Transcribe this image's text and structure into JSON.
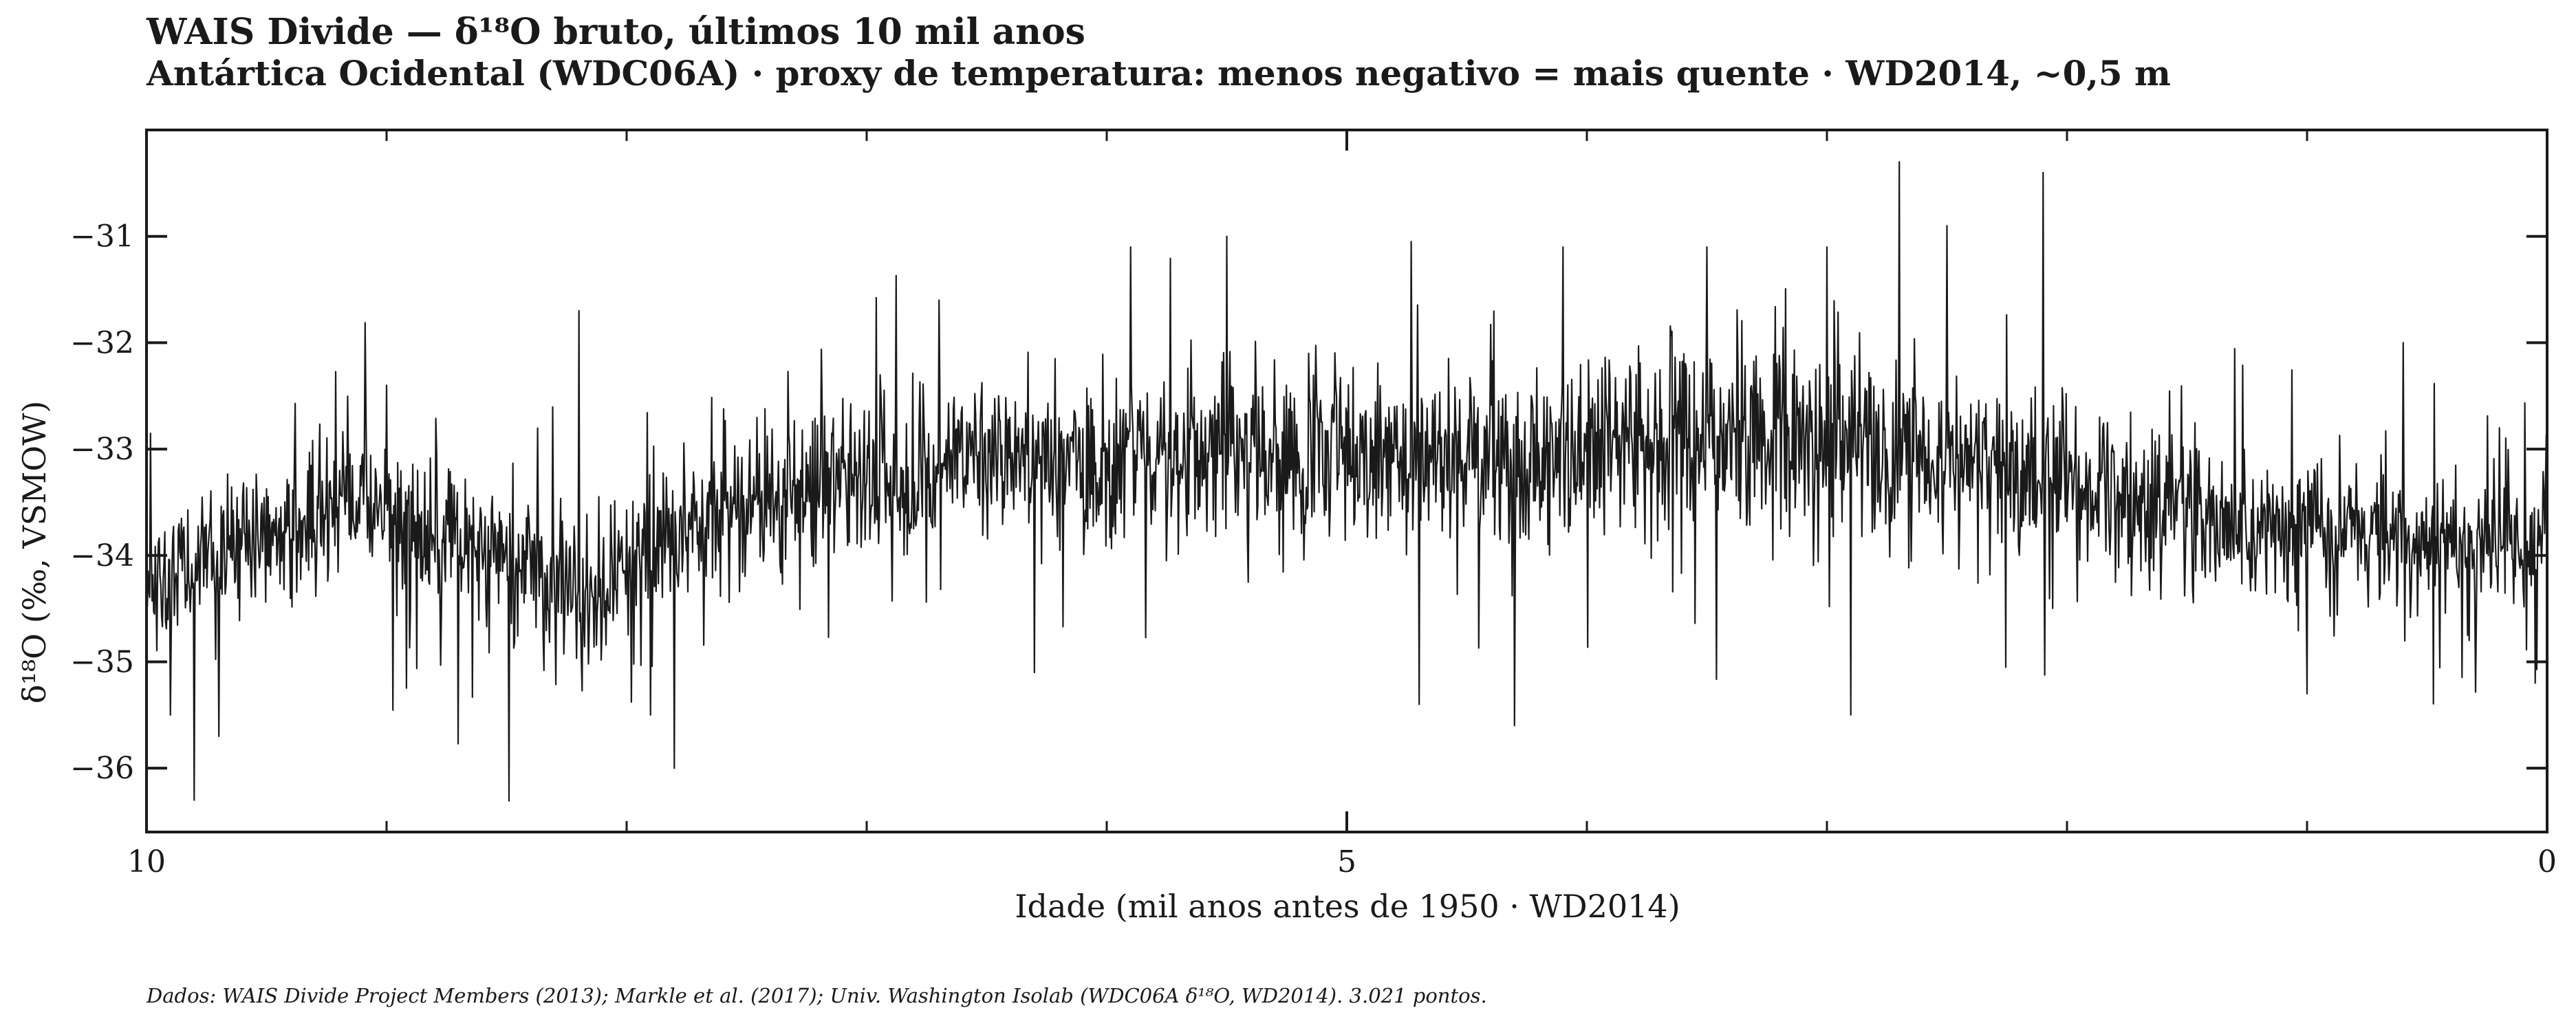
{
  "chart_data": {
    "type": "line",
    "title": "WAIS Divide — δ¹⁸O bruto, últimos 10 mil anos",
    "subtitle": "Antártica Ocidental (WDC06A) · proxy de temperatura: menos negativo = mais quente · WD2014, ~0,5 m",
    "xlabel": "Idade (mil anos antes de 1950 · WD2014)",
    "ylabel": "δ¹⁸O (‰, VSMOW)",
    "source": "Dados: WAIS Divide Project Members (2013); Markle et al. (2017); Univ. Washington Isolab (WDC06A δ¹⁸O, WD2014). 3.021 pontos.",
    "xlim": [
      10,
      0
    ],
    "ylim": [
      -36.6,
      -30.0
    ],
    "x_ticks": [
      10,
      5,
      0
    ],
    "x_tick_labels": [
      "10",
      "5",
      "0"
    ],
    "x_minor_ticks": [
      9,
      8,
      7,
      6,
      4,
      3,
      2,
      1
    ],
    "y_ticks": [
      -31,
      -32,
      -33,
      -34,
      -35,
      -36
    ],
    "y_tick_labels": [
      "−31",
      "−32",
      "−33",
      "−34",
      "−35",
      "−36"
    ],
    "grid": false,
    "point_count": 3021,
    "line_color": "#1a1a1a",
    "series": [
      {
        "x": [
          10.0,
          9.9,
          9.8,
          9.7,
          9.6,
          9.5,
          9.4,
          9.3,
          9.2,
          9.1,
          9.0,
          8.9,
          8.8,
          8.7,
          8.6,
          8.5,
          8.4,
          8.3,
          8.2,
          8.1,
          8.0,
          7.9,
          7.8,
          7.7,
          7.6,
          7.5,
          7.4,
          7.3,
          7.2,
          7.1,
          7.0,
          6.9,
          6.8,
          6.7,
          6.6,
          6.5,
          6.4,
          6.3,
          6.2,
          6.1,
          6.0,
          5.9,
          5.8,
          5.7,
          5.6,
          5.5,
          5.4,
          5.3,
          5.2,
          5.1,
          5.0,
          4.9,
          4.8,
          4.7,
          4.6,
          4.5,
          4.4,
          4.3,
          4.2,
          4.1,
          4.0,
          3.9,
          3.8,
          3.7,
          3.6,
          3.5,
          3.4,
          3.3,
          3.2,
          3.1,
          3.0,
          2.9,
          2.8,
          2.7,
          2.6,
          2.5,
          2.4,
          2.3,
          2.2,
          2.1,
          2.0,
          1.9,
          1.8,
          1.7,
          1.6,
          1.5,
          1.4,
          1.3,
          1.2,
          1.1,
          1.0,
          0.9,
          0.8,
          0.7,
          0.6,
          0.5,
          0.4,
          0.3,
          0.2,
          0.1,
          0.0
        ],
        "mean": [
          -34.2,
          -34.3,
          -34.1,
          -34.0,
          -33.9,
          -33.8,
          -33.7,
          -33.6,
          -33.6,
          -33.5,
          -33.6,
          -33.7,
          -33.8,
          -33.9,
          -34.0,
          -34.1,
          -34.2,
          -34.3,
          -34.4,
          -34.3,
          -34.1,
          -33.9,
          -33.8,
          -33.7,
          -33.6,
          -33.5,
          -33.5,
          -33.4,
          -33.3,
          -33.3,
          -33.2,
          -33.2,
          -33.3,
          -33.2,
          -33.1,
          -33.1,
          -33.0,
          -33.1,
          -33.2,
          -33.1,
          -33.1,
          -33.1,
          -33.0,
          -33.1,
          -33.0,
          -33.1,
          -33.2,
          -33.1,
          -33.1,
          -33.0,
          -33.0,
          -33.1,
          -33.1,
          -33.0,
          -33.0,
          -32.9,
          -33.0,
          -33.1,
          -33.0,
          -33.0,
          -33.0,
          -32.9,
          -33.0,
          -33.1,
          -32.9,
          -32.9,
          -32.8,
          -32.9,
          -32.8,
          -32.8,
          -32.8,
          -32.9,
          -33.0,
          -33.1,
          -33.1,
          -33.2,
          -33.2,
          -33.2,
          -33.3,
          -33.3,
          -33.3,
          -33.4,
          -33.4,
          -33.5,
          -33.5,
          -33.5,
          -33.6,
          -33.6,
          -33.7,
          -33.7,
          -33.7,
          -33.8,
          -33.8,
          -33.8,
          -33.9,
          -33.9,
          -33.9,
          -34.0,
          -33.9,
          -33.9,
          -33.9
        ],
        "noise_sd": [
          0.4,
          0.45,
          0.45,
          0.45,
          0.45,
          0.45,
          0.45,
          0.45,
          0.45,
          0.45,
          0.45,
          0.45,
          0.45,
          0.45,
          0.5,
          0.5,
          0.5,
          0.5,
          0.5,
          0.5,
          0.5,
          0.45,
          0.45,
          0.45,
          0.5,
          0.5,
          0.5,
          0.5,
          0.5,
          0.5,
          0.5,
          0.5,
          0.5,
          0.5,
          0.55,
          0.55,
          0.55,
          0.55,
          0.55,
          0.55,
          0.55,
          0.55,
          0.55,
          0.55,
          0.55,
          0.6,
          0.6,
          0.6,
          0.6,
          0.6,
          0.6,
          0.6,
          0.6,
          0.6,
          0.6,
          0.6,
          0.6,
          0.6,
          0.6,
          0.6,
          0.6,
          0.6,
          0.6,
          0.6,
          0.6,
          0.6,
          0.65,
          0.65,
          0.65,
          0.65,
          0.65,
          0.6,
          0.6,
          0.6,
          0.6,
          0.55,
          0.55,
          0.55,
          0.55,
          0.55,
          0.5,
          0.5,
          0.5,
          0.5,
          0.5,
          0.5,
          0.5,
          0.5,
          0.5,
          0.5,
          0.45,
          0.45,
          0.45,
          0.45,
          0.45,
          0.45,
          0.45,
          0.45,
          0.45,
          0.45,
          0.45
        ],
        "spikes": [
          {
            "x": 9.8,
            "y": -36.3
          },
          {
            "x": 9.9,
            "y": -35.5
          },
          {
            "x": 9.7,
            "y": -35.7
          },
          {
            "x": 9.0,
            "y": -32.4
          },
          {
            "x": 8.2,
            "y": -31.7
          },
          {
            "x": 7.9,
            "y": -35.5
          },
          {
            "x": 7.8,
            "y": -36.0
          },
          {
            "x": 6.7,
            "y": -31.6
          },
          {
            "x": 6.3,
            "y": -35.1
          },
          {
            "x": 5.9,
            "y": -31.1
          },
          {
            "x": 5.5,
            "y": -31.0
          },
          {
            "x": 4.7,
            "y": -35.4
          },
          {
            "x": 4.3,
            "y": -35.6
          },
          {
            "x": 4.1,
            "y": -31.1
          },
          {
            "x": 3.5,
            "y": -31.1
          },
          {
            "x": 3.0,
            "y": -31.1
          },
          {
            "x": 2.9,
            "y": -35.5
          },
          {
            "x": 2.7,
            "y": -30.3
          },
          {
            "x": 2.5,
            "y": -30.9
          },
          {
            "x": 2.1,
            "y": -30.4
          },
          {
            "x": 1.0,
            "y": -35.3
          },
          {
            "x": 0.6,
            "y": -32.0
          },
          {
            "x": 0.2,
            "y": -32.8
          },
          {
            "x": 0.05,
            "y": -35.2
          }
        ]
      }
    ]
  }
}
